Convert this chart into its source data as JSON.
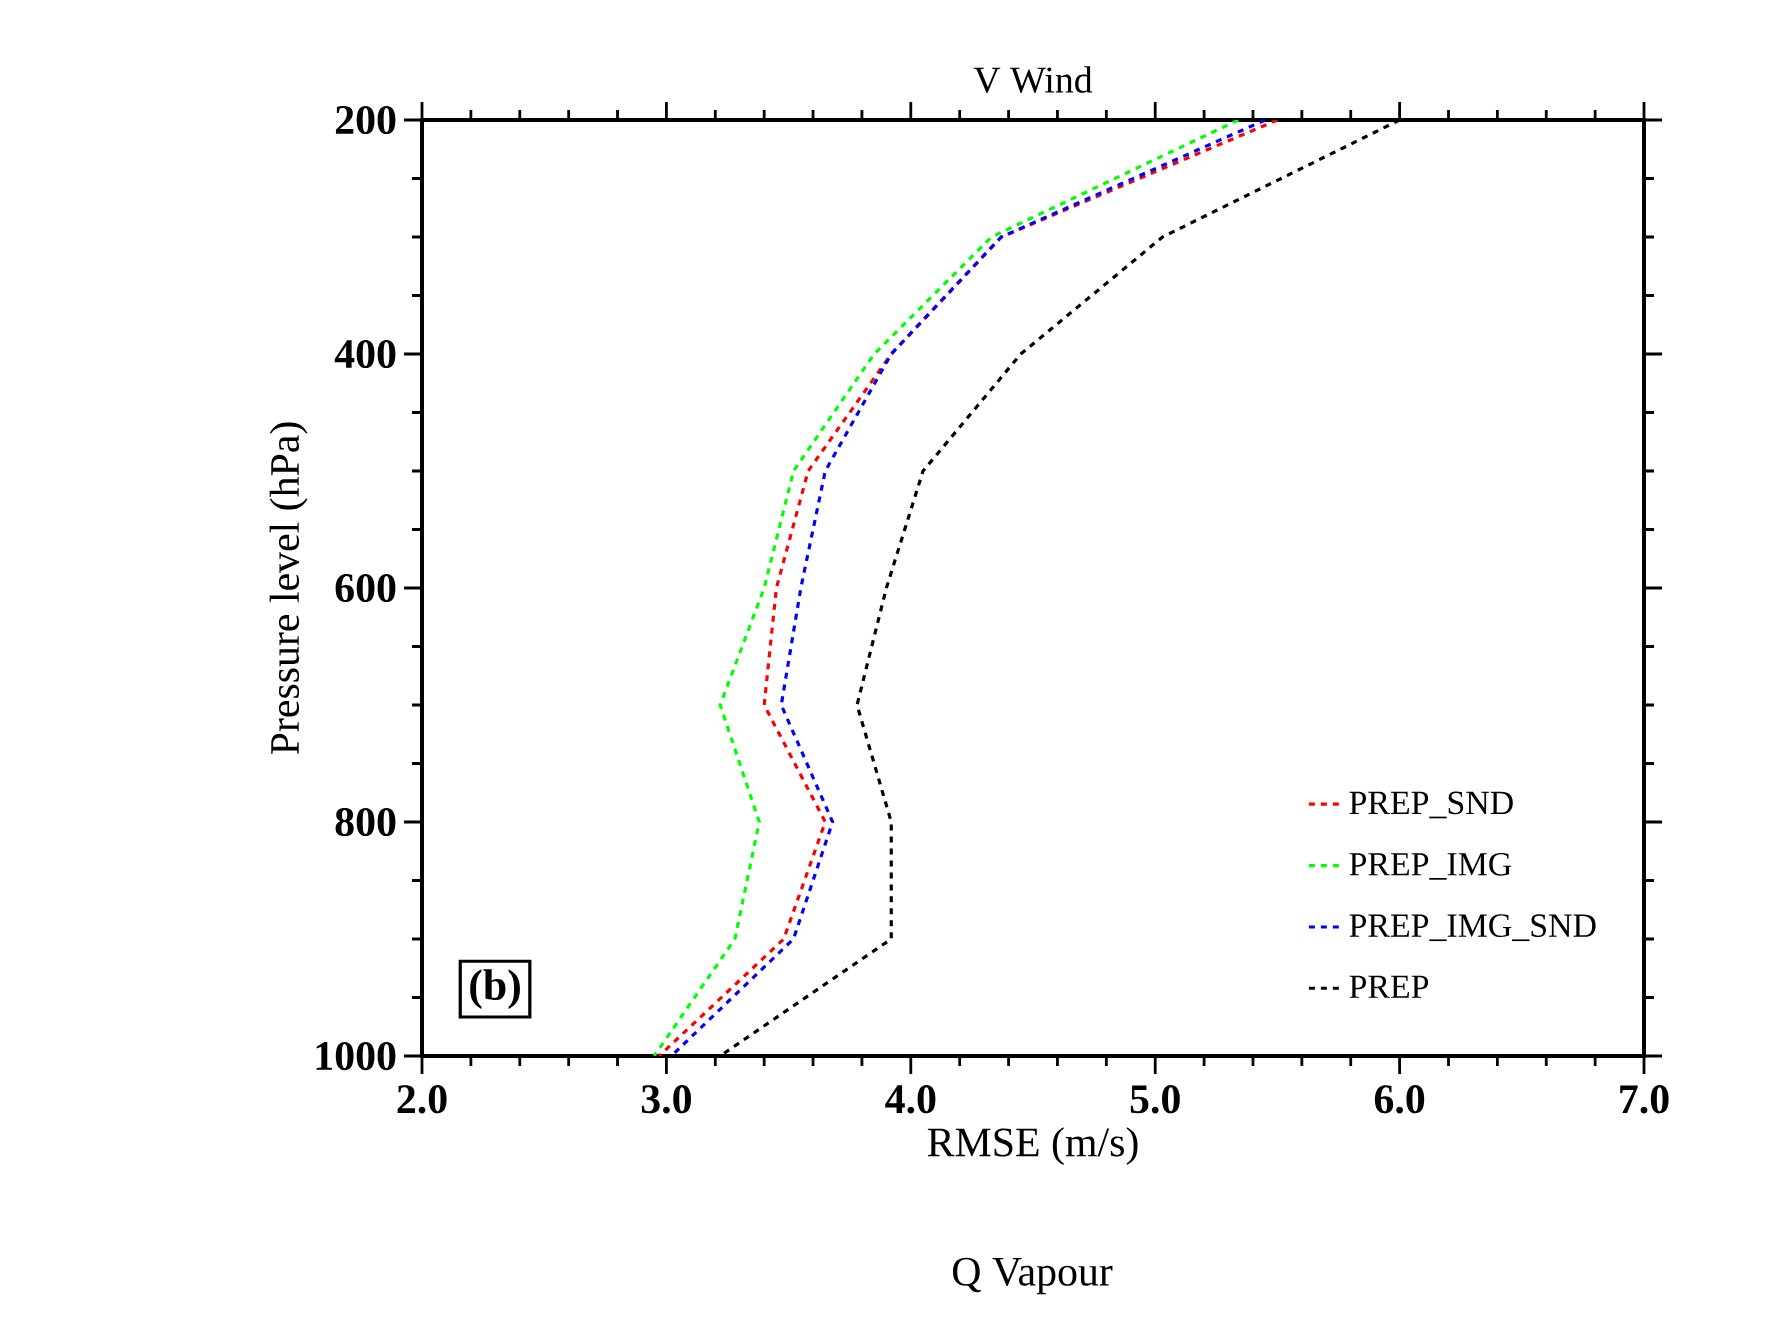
{
  "chart_data": {
    "type": "line",
    "title": "V Wind",
    "xlabel": "RMSE (m/s)",
    "ylabel": "Pressure level (hPa)",
    "xlim": [
      2.0,
      7.0
    ],
    "xticks": [
      {
        "value": 2,
        "label": "2.0"
      },
      {
        "value": 3,
        "label": "3.0"
      },
      {
        "value": 4,
        "label": "4.0"
      },
      {
        "value": 5,
        "label": "5.0"
      },
      {
        "value": 6,
        "label": "6.0"
      },
      {
        "value": 7,
        "label": "7.0"
      }
    ],
    "ylim": [
      1000,
      200
    ],
    "yticks": [
      200,
      400,
      600,
      800,
      1000
    ],
    "line_style": "dashed",
    "legend": "bottom right",
    "annotations": [
      "(b)",
      "Q Vapour"
    ],
    "series": [
      {
        "name": "PREP_SND",
        "color": "#ff0000",
        "x": [
          5.5,
          4.37,
          3.92,
          3.58,
          3.45,
          3.4,
          3.65,
          3.48,
          2.97
        ],
        "values": [
          200,
          300,
          400,
          500,
          600,
          700,
          800,
          900,
          1000
        ]
      },
      {
        "name": "PREP_IMG",
        "color": "#00ff00",
        "x": [
          5.34,
          4.33,
          3.85,
          3.52,
          3.4,
          3.22,
          3.38,
          3.28,
          2.95
        ],
        "values": [
          200,
          300,
          400,
          500,
          600,
          700,
          800,
          900,
          1000
        ]
      },
      {
        "name": "PREP_IMG_SND",
        "color": "#0000ff",
        "x": [
          5.45,
          4.37,
          3.92,
          3.65,
          3.55,
          3.47,
          3.68,
          3.52,
          3.02
        ],
        "values": [
          200,
          300,
          400,
          500,
          600,
          700,
          800,
          900,
          1000
        ]
      },
      {
        "name": "PREP",
        "color": "#000000",
        "x": [
          6.0,
          5.03,
          4.45,
          4.05,
          3.9,
          3.78,
          3.92,
          3.92,
          3.22
        ],
        "values": [
          200,
          300,
          400,
          500,
          600,
          700,
          800,
          900,
          1000
        ]
      }
    ]
  }
}
